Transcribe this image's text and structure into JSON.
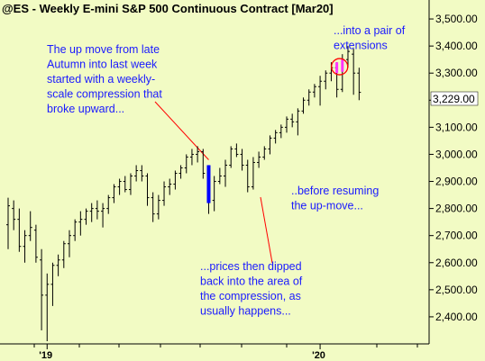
{
  "chart_data": {
    "type": "ohlc",
    "title": "@ES - Weekly  E-mini S&P 500 Continuous Contract [Mar20]",
    "xlabel": "",
    "ylabel": "",
    "ylim": [
      2300,
      3570
    ],
    "y_ticks": [
      2400,
      2500,
      2600,
      2700,
      2800,
      2900,
      3000,
      3100,
      3200,
      3300,
      3400,
      3500
    ],
    "y_tick_labels": [
      "2,400.00",
      "2,500.00",
      "2,600.00",
      "2,700.00",
      "2,800.00",
      "2,900.00",
      "3,000.00",
      "3,100.00",
      "3,200.00",
      "3,300.00",
      "3,400.00",
      "3,500.00"
    ],
    "x_ticks": [
      {
        "label": "'19",
        "bar": 7
      },
      {
        "label": "'20",
        "bar": 56
      }
    ],
    "last_price_label": "3,229.00",
    "last_price": 3229,
    "grid": false,
    "bars": [
      {
        "o": 2740,
        "h": 2840,
        "l": 2650,
        "c": 2810
      },
      {
        "o": 2800,
        "h": 2830,
        "l": 2720,
        "c": 2760
      },
      {
        "o": 2760,
        "h": 2800,
        "l": 2640,
        "c": 2660
      },
      {
        "o": 2660,
        "h": 2720,
        "l": 2600,
        "c": 2700
      },
      {
        "o": 2700,
        "h": 2790,
        "l": 2680,
        "c": 2730
      },
      {
        "o": 2720,
        "h": 2740,
        "l": 2600,
        "c": 2620
      },
      {
        "o": 2610,
        "h": 2650,
        "l": 2350,
        "c": 2480
      },
      {
        "o": 2480,
        "h": 2560,
        "l": 2310,
        "c": 2520
      },
      {
        "o": 2520,
        "h": 2600,
        "l": 2440,
        "c": 2590
      },
      {
        "o": 2590,
        "h": 2630,
        "l": 2550,
        "c": 2610
      },
      {
        "o": 2610,
        "h": 2680,
        "l": 2580,
        "c": 2670
      },
      {
        "o": 2670,
        "h": 2720,
        "l": 2620,
        "c": 2700
      },
      {
        "o": 2700,
        "h": 2760,
        "l": 2680,
        "c": 2750
      },
      {
        "o": 2750,
        "h": 2790,
        "l": 2700,
        "c": 2760
      },
      {
        "o": 2760,
        "h": 2800,
        "l": 2740,
        "c": 2790
      },
      {
        "o": 2790,
        "h": 2820,
        "l": 2750,
        "c": 2800
      },
      {
        "o": 2800,
        "h": 2830,
        "l": 2760,
        "c": 2790
      },
      {
        "o": 2790,
        "h": 2820,
        "l": 2730,
        "c": 2800
      },
      {
        "o": 2800,
        "h": 2850,
        "l": 2780,
        "c": 2840
      },
      {
        "o": 2840,
        "h": 2890,
        "l": 2820,
        "c": 2880
      },
      {
        "o": 2880,
        "h": 2910,
        "l": 2850,
        "c": 2900
      },
      {
        "o": 2900,
        "h": 2920,
        "l": 2860,
        "c": 2870
      },
      {
        "o": 2870,
        "h": 2930,
        "l": 2850,
        "c": 2920
      },
      {
        "o": 2920,
        "h": 2960,
        "l": 2900,
        "c": 2940
      },
      {
        "o": 2940,
        "h": 2960,
        "l": 2900,
        "c": 2920
      },
      {
        "o": 2920,
        "h": 2930,
        "l": 2810,
        "c": 2840
      },
      {
        "o": 2840,
        "h": 2860,
        "l": 2750,
        "c": 2780
      },
      {
        "o": 2780,
        "h": 2850,
        "l": 2760,
        "c": 2830
      },
      {
        "o": 2830,
        "h": 2900,
        "l": 2810,
        "c": 2880
      },
      {
        "o": 2880,
        "h": 2910,
        "l": 2850,
        "c": 2890
      },
      {
        "o": 2890,
        "h": 2940,
        "l": 2870,
        "c": 2930
      },
      {
        "o": 2930,
        "h": 2960,
        "l": 2910,
        "c": 2950
      },
      {
        "o": 2950,
        "h": 3000,
        "l": 2930,
        "c": 2990
      },
      {
        "o": 2990,
        "h": 3020,
        "l": 2960,
        "c": 3000
      },
      {
        "o": 3000,
        "h": 3030,
        "l": 2970,
        "c": 3010
      },
      {
        "o": 3010,
        "h": 3020,
        "l": 2910,
        "c": 2930
      },
      {
        "o": 2930,
        "h": 2960,
        "l": 2780,
        "c": 2830
      },
      {
        "o": 2830,
        "h": 2920,
        "l": 2790,
        "c": 2900
      },
      {
        "o": 2900,
        "h": 2950,
        "l": 2890,
        "c": 2920
      },
      {
        "o": 2920,
        "h": 2980,
        "l": 2880,
        "c": 2960
      },
      {
        "o": 2960,
        "h": 3030,
        "l": 2950,
        "c": 3020
      },
      {
        "o": 3020,
        "h": 3040,
        "l": 2990,
        "c": 3000
      },
      {
        "o": 3000,
        "h": 3020,
        "l": 2940,
        "c": 2960
      },
      {
        "o": 2960,
        "h": 2980,
        "l": 2860,
        "c": 2880
      },
      {
        "o": 2880,
        "h": 2990,
        "l": 2870,
        "c": 2970
      },
      {
        "o": 2970,
        "h": 3010,
        "l": 2950,
        "c": 2990
      },
      {
        "o": 2990,
        "h": 3030,
        "l": 2980,
        "c": 3020
      },
      {
        "o": 3020,
        "h": 3070,
        "l": 3000,
        "c": 3060
      },
      {
        "o": 3060,
        "h": 3090,
        "l": 3040,
        "c": 3080
      },
      {
        "o": 3080,
        "h": 3110,
        "l": 3060,
        "c": 3100
      },
      {
        "o": 3100,
        "h": 3140,
        "l": 3080,
        "c": 3130
      },
      {
        "o": 3130,
        "h": 3150,
        "l": 3100,
        "c": 3120
      },
      {
        "o": 3120,
        "h": 3170,
        "l": 3070,
        "c": 3160
      },
      {
        "o": 3160,
        "h": 3210,
        "l": 3150,
        "c": 3200
      },
      {
        "o": 3200,
        "h": 3240,
        "l": 3180,
        "c": 3230
      },
      {
        "o": 3230,
        "h": 3260,
        "l": 3210,
        "c": 3250
      },
      {
        "o": 3250,
        "h": 3290,
        "l": 3180,
        "c": 3270
      },
      {
        "o": 3270,
        "h": 3310,
        "l": 3240,
        "c": 3300
      },
      {
        "o": 3300,
        "h": 3340,
        "l": 3270,
        "c": 3320
      },
      {
        "o": 3320,
        "h": 3340,
        "l": 3210,
        "c": 3240
      },
      {
        "o": 3240,
        "h": 3370,
        "l": 3230,
        "c": 3350
      },
      {
        "o": 3350,
        "h": 3400,
        "l": 3320,
        "c": 3380
      },
      {
        "o": 3370,
        "h": 3390,
        "l": 3220,
        "c": 3300
      },
      {
        "o": 3300,
        "h": 3320,
        "l": 3200,
        "c": 3229
      }
    ],
    "compression_bar": {
      "bar": 36,
      "high": 2960,
      "low": 2820,
      "color": "#0000ff"
    },
    "extension_bars": [
      {
        "bar": 59,
        "high": 3340,
        "low": 3300
      },
      {
        "bar": 60,
        "high": 3350,
        "low": 3305
      }
    ],
    "extension_color": "#ff33ff",
    "circle_color": "#ff0000",
    "annotations": [
      {
        "id": "ann1",
        "lines": [
          "The up move from late",
          "Autumn into last week",
          "started with a weekly-",
          "scale compression that",
          "broke upward..."
        ]
      },
      {
        "id": "ann2",
        "lines": [
          "...prices then dipped",
          "back into the area of",
          "the compression, as",
          "usually happens..."
        ]
      },
      {
        "id": "ann3",
        "lines": [
          "..before resuming",
          "the up-move..."
        ]
      },
      {
        "id": "ann4",
        "lines": [
          "...into a pair of",
          "extensions"
        ]
      }
    ]
  }
}
